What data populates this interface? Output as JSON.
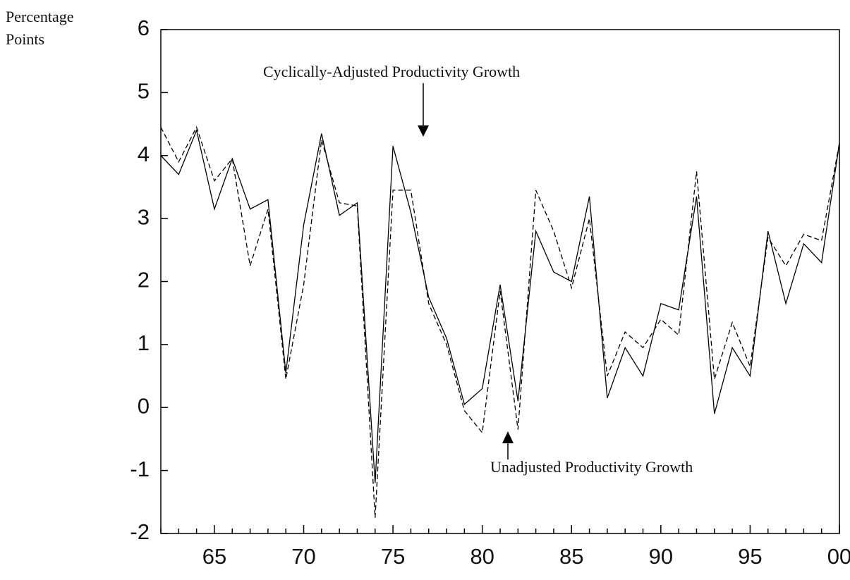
{
  "chart_data": {
    "type": "line",
    "ylabel": [
      "Percentage",
      "Points"
    ],
    "categories": [
      null,
      null,
      null,
      "65",
      null,
      null,
      null,
      null,
      "70",
      null,
      null,
      null,
      null,
      "75",
      null,
      null,
      null,
      null,
      "80",
      null,
      null,
      null,
      null,
      "85",
      null,
      null,
      null,
      null,
      "90",
      null,
      null,
      null,
      null,
      "95",
      null,
      null,
      null,
      null,
      "00"
    ],
    "series": [
      {
        "color": "#000000",
        "style": "solid",
        "values": [
          4.0,
          3.7,
          4.4,
          3.15,
          3.95,
          3.15,
          3.3,
          0.55,
          2.9,
          4.35,
          3.05,
          3.25,
          -1.2,
          4.15,
          3.1,
          1.75,
          1.1,
          0.05,
          0.3,
          1.95,
          0.1,
          2.8,
          2.15,
          2.0,
          3.35,
          0.15,
          0.95,
          0.5,
          1.65,
          1.55,
          3.35,
          -0.1,
          0.95,
          0.5,
          2.8,
          1.65,
          2.6,
          2.3,
          4.2
        ]
      },
      {
        "color": "#000000",
        "style": "dashed",
        "values": [
          4.45,
          3.9,
          4.45,
          3.6,
          3.95,
          2.25,
          3.15,
          0.45,
          1.95,
          4.25,
          3.25,
          3.2,
          -1.75,
          3.45,
          3.45,
          1.65,
          1.0,
          -0.05,
          -0.4,
          1.85,
          -0.35,
          3.45,
          2.8,
          1.9,
          3.0,
          0.5,
          1.2,
          0.95,
          1.4,
          1.15,
          3.75,
          0.45,
          1.35,
          0.65,
          2.7,
          2.25,
          2.75,
          2.65,
          4.2
        ]
      }
    ],
    "annotations": [
      "Cyclically-Adjusted Productivity Growth",
      "Unadjusted Productivity Growth"
    ],
    "ylim": [
      -2,
      6
    ],
    "yticks": [
      -2,
      -1,
      0,
      1,
      2,
      3,
      4,
      5,
      6
    ]
  }
}
